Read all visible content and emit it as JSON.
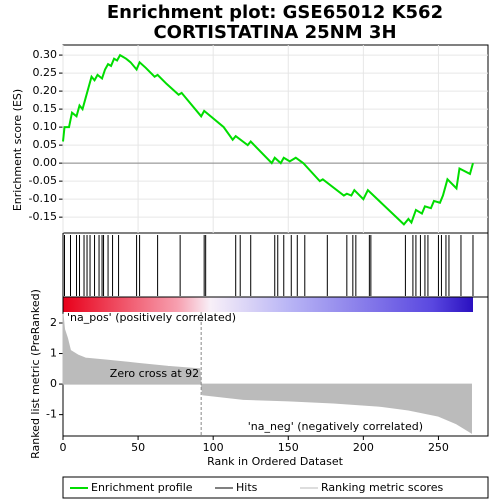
{
  "chart_data": {
    "type": "gsea",
    "title": [
      "Enrichment plot: GSE65012 K562",
      "CORTISTATINA 25NM 3H"
    ],
    "xlabel": "Rank in Ordered Dataset",
    "ylabel": "Enrichment score (ES)",
    "y3label": "Ranked list metric (PreRanked)",
    "xlim": [
      0,
      283
    ],
    "xticks": [
      0,
      50,
      100,
      150,
      200,
      250
    ],
    "ylim": [
      -0.194,
      0.328
    ],
    "yticks": [
      {
        "value": -0.15,
        "label": "-0.15"
      },
      {
        "value": -0.1,
        "label": "-0.10"
      },
      {
        "value": -0.05,
        "label": "-0.05"
      },
      {
        "value": 0,
        "label": "0.00"
      },
      {
        "value": 0.05,
        "label": "0.05"
      },
      {
        "value": 0.1,
        "label": "0.10"
      },
      {
        "value": 0.15,
        "label": "0.15"
      },
      {
        "value": 0.2,
        "label": "0.20"
      },
      {
        "value": 0.25,
        "label": "0.25"
      },
      {
        "value": 0.3,
        "label": "0.30"
      }
    ],
    "y3lim": [
      -1.7,
      2.36
    ],
    "y3ticks": [
      -1,
      0,
      1,
      2
    ],
    "grid": true,
    "series": [
      {
        "name": "Enrichment profile",
        "color": "#00dd00",
        "x": [
          0,
          1,
          4,
          6,
          9,
          11,
          13,
          15,
          17,
          19,
          21,
          23,
          26,
          28,
          30,
          32,
          34,
          36,
          38,
          42,
          45,
          49,
          51,
          55,
          61,
          63,
          69,
          77,
          79,
          92,
          94,
          107,
          113,
          115,
          123,
          125,
          139,
          141,
          145,
          147,
          151,
          155,
          160,
          171,
          173,
          187,
          189,
          192,
          194,
          200,
          203,
          227,
          230,
          232,
          235,
          239,
          241,
          245,
          247,
          251,
          253,
          256,
          262,
          264,
          271,
          273
        ],
        "values": [
          0.06,
          0.1,
          0.1,
          0.14,
          0.13,
          0.16,
          0.15,
          0.18,
          0.21,
          0.24,
          0.23,
          0.245,
          0.235,
          0.26,
          0.275,
          0.27,
          0.29,
          0.285,
          0.3,
          0.29,
          0.28,
          0.26,
          0.28,
          0.265,
          0.24,
          0.245,
          0.22,
          0.19,
          0.195,
          0.13,
          0.145,
          0.1,
          0.065,
          0.075,
          0.05,
          0.06,
          0,
          0.015,
          0,
          0.015,
          0.005,
          0.015,
          0,
          -0.05,
          -0.045,
          -0.09,
          -0.085,
          -0.09,
          -0.075,
          -0.1,
          -0.075,
          -0.17,
          -0.155,
          -0.165,
          -0.13,
          -0.14,
          -0.12,
          -0.125,
          -0.105,
          -0.11,
          -0.09,
          -0.045,
          -0.07,
          -0.015,
          -0.03,
          0
        ]
      },
      {
        "name": "Hits",
        "color": "#000000",
        "x": [
          1,
          5,
          9,
          11,
          14,
          16,
          18,
          21,
          24,
          26,
          27,
          30,
          33,
          37,
          49,
          51,
          63,
          78,
          94,
          95,
          115,
          118,
          125,
          141,
          143,
          147,
          152,
          156,
          161,
          176,
          189,
          193,
          195,
          204,
          205,
          228,
          233,
          235,
          238,
          241,
          243,
          250,
          252,
          255,
          257,
          265,
          273
        ]
      },
      {
        "name": "Ranking metric scores",
        "color": "#bbbbbb",
        "x": [
          0,
          1,
          3,
          5,
          10,
          15,
          30,
          50,
          70,
          91,
          92,
          93,
          120,
          150,
          180,
          210,
          230,
          250,
          262,
          272
        ],
        "values": [
          2.3,
          1.8,
          1.5,
          1.1,
          0.95,
          0.85,
          0.78,
          0.68,
          0.58,
          0.5,
          0,
          -0.35,
          -0.5,
          -0.55,
          -0.62,
          -0.72,
          -0.85,
          -1.05,
          -1.3,
          -1.6
        ]
      }
    ],
    "annotations": [
      {
        "text": "'na_pos' (positively correlated)",
        "color": "#cc0000"
      },
      {
        "text": "Zero cross at 92",
        "x": 92
      },
      {
        "text": "'na_neg' (negatively correlated)",
        "color": "#3333bb"
      }
    ]
  }
}
